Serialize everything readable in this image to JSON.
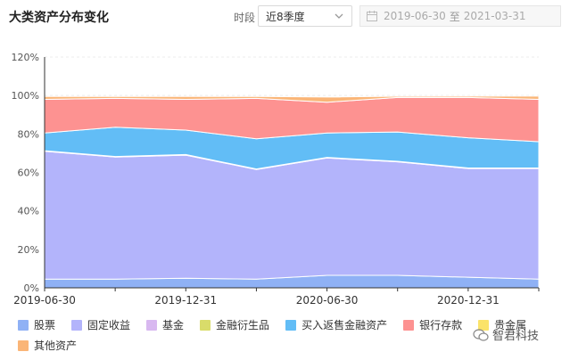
{
  "header": {
    "title": "大类资产分布变化",
    "period_label": "时段",
    "period_value": "近8季度",
    "date_start": "2019-06-30",
    "date_sep": "至",
    "date_end": "2021-03-31"
  },
  "watermark": {
    "text": "智君科技"
  },
  "chart_data": {
    "type": "area",
    "stacked": true,
    "x": [
      "2019-06-30",
      "2019-09-30",
      "2019-12-31",
      "2020-03-31",
      "2020-06-30",
      "2020-09-30",
      "2020-12-31",
      "2021-03-31"
    ],
    "x_tick_labels": [
      "2019-06-30",
      "2019-12-31",
      "2020-06-30",
      "2020-12-31"
    ],
    "y_ticks": [
      "0%",
      "20%",
      "40%",
      "60%",
      "80%",
      "100%",
      "120%"
    ],
    "ylim": [
      0,
      120
    ],
    "grid": true,
    "legend_position": "bottom",
    "series": [
      {
        "name": "股票",
        "color": "#8fb1f5",
        "values": [
          4.5,
          4.5,
          5,
          4.5,
          6.5,
          6.5,
          5.5,
          4.5
        ]
      },
      {
        "name": "固定收益",
        "color": "#b3b4fb",
        "values": [
          66.5,
          63.5,
          64,
          57,
          61,
          59,
          56.5,
          57.5
        ]
      },
      {
        "name": "基金",
        "color": "#d8b8f0",
        "values": [
          0.3,
          0.3,
          0.3,
          0.3,
          0.3,
          0.3,
          0.3,
          0.3
        ]
      },
      {
        "name": "金融衍生品",
        "color": "#d9dc6a",
        "values": [
          0,
          0,
          0,
          0,
          0,
          0,
          0,
          0
        ]
      },
      {
        "name": "买入返售金融资产",
        "color": "#62bdf6",
        "values": [
          9.2,
          15.2,
          12.7,
          15.7,
          12.7,
          15.2,
          15.7,
          13.7
        ]
      },
      {
        "name": "银行存款",
        "color": "#fd9291",
        "values": [
          17.5,
          15,
          16,
          21,
          16,
          18,
          21,
          22
        ]
      },
      {
        "name": "贵金属",
        "color": "#fbe36a",
        "values": [
          0,
          0,
          0,
          0,
          0,
          0,
          0,
          0
        ]
      },
      {
        "name": "其他资产",
        "color": "#fab577",
        "values": [
          1.5,
          1,
          1.5,
          1,
          2.7,
          0.6,
          0.7,
          1.7
        ]
      }
    ]
  }
}
